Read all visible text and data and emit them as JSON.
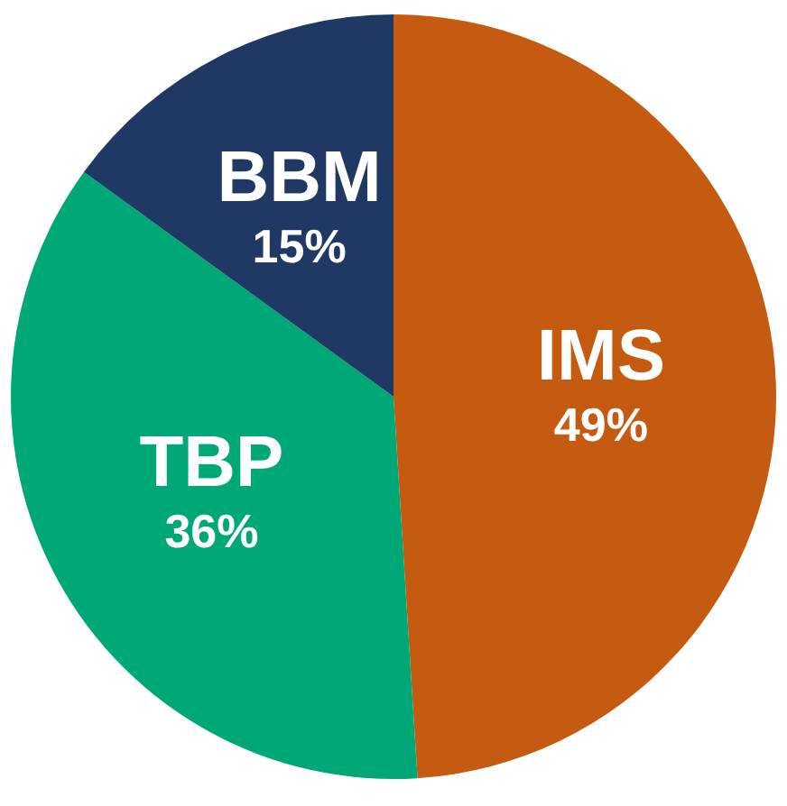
{
  "chart_data": {
    "type": "pie",
    "categories": [
      "IMS",
      "TBP",
      "BBM"
    ],
    "values": [
      49,
      36,
      15
    ],
    "colors": [
      "#c55a11",
      "#00a878",
      "#203864"
    ],
    "value_labels": [
      "49%",
      "36%",
      "15%"
    ]
  }
}
